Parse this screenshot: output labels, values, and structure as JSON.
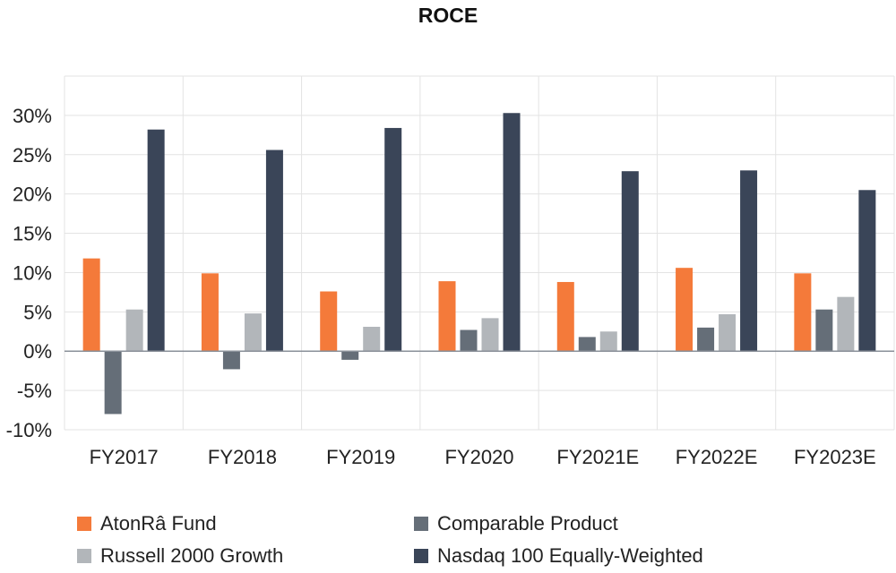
{
  "chart_data": {
    "type": "bar",
    "title": "ROCE",
    "categories": [
      "FY2017",
      "FY2018",
      "FY2019",
      "FY2020",
      "FY2021E",
      "FY2022E",
      "FY2023E"
    ],
    "series": [
      {
        "name": "AtonRâ Fund",
        "color": "#F47A3A",
        "values": [
          11.8,
          9.9,
          7.6,
          8.9,
          8.8,
          10.6,
          9.9
        ]
      },
      {
        "name": "Comparable Product",
        "color": "#656E78",
        "values": [
          -8.0,
          -2.3,
          -1.1,
          2.7,
          1.8,
          3.0,
          5.3
        ]
      },
      {
        "name": "Russell 2000 Growth",
        "color": "#B2B6BA",
        "values": [
          5.3,
          4.8,
          3.1,
          4.2,
          2.5,
          4.7,
          6.9
        ]
      },
      {
        "name": "Nasdaq 100 Equally-Weighted",
        "color": "#3A4558",
        "values": [
          28.2,
          25.6,
          28.4,
          30.3,
          22.9,
          23.0,
          20.5
        ]
      }
    ],
    "y_ticks": [
      "-10%",
      "-5%",
      "0%",
      "5%",
      "10%",
      "15%",
      "20%",
      "25%",
      "30%"
    ],
    "ylim": [
      -10,
      35
    ],
    "xlabel": "",
    "ylabel": "",
    "grid": true,
    "legend_position": "bottom"
  }
}
